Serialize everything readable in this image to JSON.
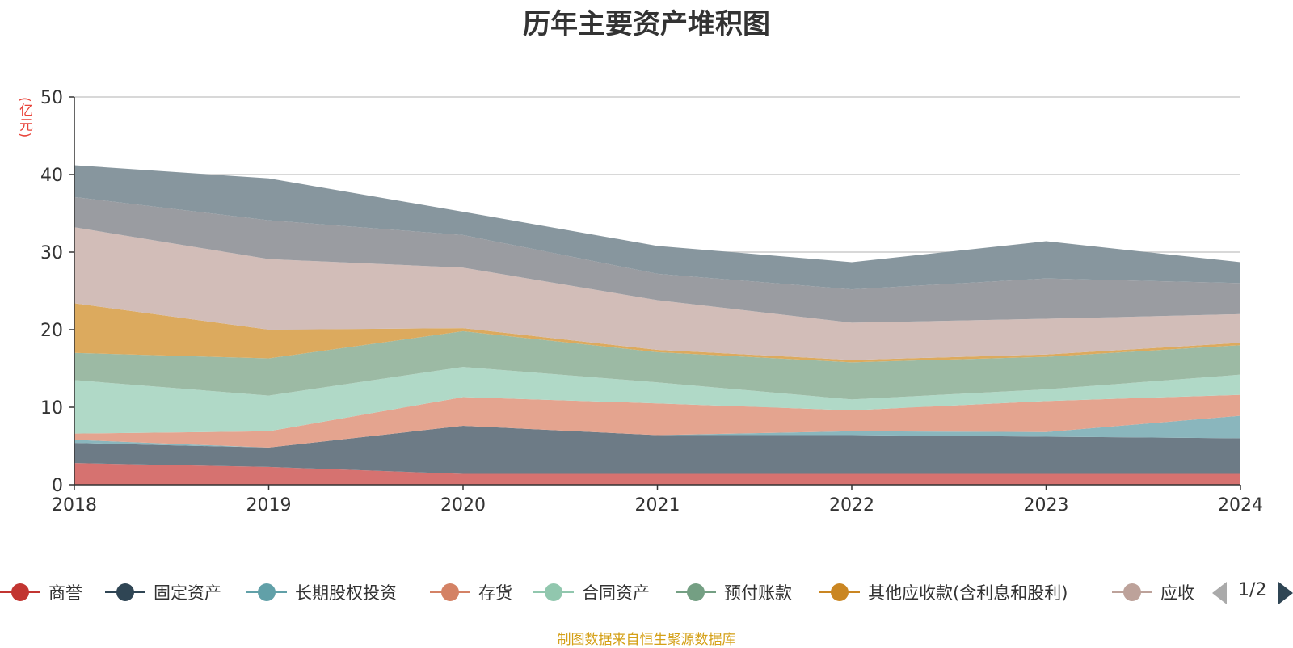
{
  "chart_data": {
    "type": "area",
    "stacked": true,
    "title": "历年主要资产堆积图",
    "unit": "(亿元)",
    "x": [
      "2018",
      "2019",
      "2020",
      "2021",
      "2022",
      "2023",
      "2024"
    ],
    "ylim": [
      0,
      50
    ],
    "yticks": [
      0,
      10,
      20,
      30,
      40,
      50
    ],
    "grid": true,
    "legend_position": "bottom",
    "series": [
      {
        "name": "商誉",
        "color": "#d67270",
        "marker_color": "#c23531",
        "values": [
          2.8,
          2.3,
          1.4,
          1.4,
          1.4,
          1.4,
          1.4
        ]
      },
      {
        "name": "固定资产",
        "color": "#6d7b86",
        "marker_color": "#2f4554",
        "values": [
          2.6,
          2.5,
          6.2,
          5.0,
          5.0,
          4.8,
          4.6
        ]
      },
      {
        "name": "长期股权投资",
        "color": "#8ab6bd",
        "marker_color": "#61a0a8",
        "values": [
          0.4,
          0.0,
          0.0,
          0.0,
          0.5,
          0.6,
          2.9
        ]
      },
      {
        "name": "存货",
        "color": "#e4a48f",
        "marker_color": "#d48265",
        "values": [
          0.8,
          2.1,
          3.7,
          4.1,
          2.7,
          4.0,
          2.7
        ]
      },
      {
        "name": "合同资产",
        "color": "#b0d9c7",
        "marker_color": "#91c7ae",
        "values": [
          6.9,
          4.6,
          3.9,
          2.7,
          1.4,
          1.5,
          2.6
        ]
      },
      {
        "name": "预付账款",
        "color": "#9cbaa4",
        "marker_color": "#749f83",
        "values": [
          3.5,
          4.8,
          4.6,
          3.9,
          4.8,
          4.2,
          3.8
        ]
      },
      {
        "name": "其他应收款(含利息和股利)",
        "color": "#dcaa5e",
        "marker_color": "#ca8622",
        "values": [
          6.4,
          3.7,
          0.4,
          0.3,
          0.3,
          0.3,
          0.3
        ]
      },
      {
        "name": "应收",
        "color": "#d2bdb8",
        "marker_color": "#bda29a",
        "values": [
          9.8,
          9.1,
          7.8,
          6.4,
          4.8,
          4.6,
          3.7
        ]
      },
      {
        "name": "",
        "color": "#9a9ca1",
        "values": [
          3.9,
          5.0,
          4.2,
          3.4,
          4.3,
          5.2,
          4.0
        ]
      },
      {
        "name": "",
        "color": "#87969e",
        "values": [
          4.1,
          5.4,
          3.0,
          3.6,
          3.5,
          4.8,
          2.7
        ]
      }
    ]
  },
  "legend": {
    "page_indicator": "1/2"
  },
  "source_note": "制图数据来自恒生聚源数据库"
}
